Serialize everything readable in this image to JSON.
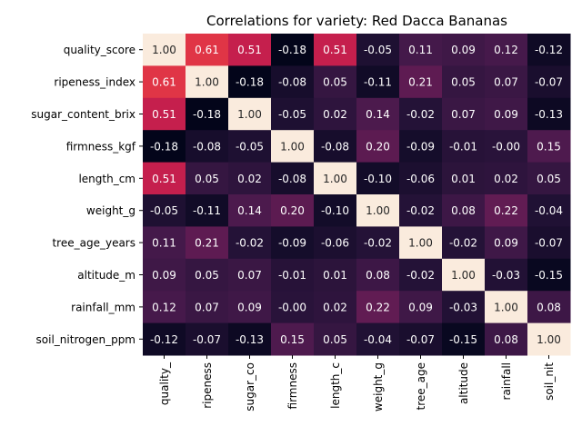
{
  "chart_data": {
    "type": "heatmap",
    "title": "Correlations for variety: Red Dacca Bananas",
    "row_labels": [
      "quality_score",
      "ripeness_index",
      "sugar_content_brix",
      "firmness_kgf",
      "length_cm",
      "weight_g",
      "tree_age_years",
      "altitude_m",
      "rainfall_mm",
      "soil_nitrogen_ppm"
    ],
    "col_labels": [
      "quality_",
      "ripeness",
      "sugar_co",
      "firmness",
      "length_c",
      "weight_g",
      "tree_age",
      "altitude",
      "rainfall",
      "soil_nit"
    ],
    "values": [
      [
        1.0,
        0.61,
        0.51,
        -0.18,
        0.51,
        -0.05,
        0.11,
        0.09,
        0.12,
        -0.12
      ],
      [
        0.61,
        1.0,
        -0.18,
        -0.08,
        0.05,
        -0.11,
        0.21,
        0.05,
        0.07,
        -0.07
      ],
      [
        0.51,
        -0.18,
        1.0,
        -0.05,
        0.02,
        0.14,
        -0.02,
        0.07,
        0.09,
        -0.13
      ],
      [
        -0.18,
        -0.08,
        -0.05,
        1.0,
        -0.08,
        0.2,
        -0.09,
        -0.01,
        -0.0,
        0.15
      ],
      [
        0.51,
        0.05,
        0.02,
        -0.08,
        1.0,
        -0.1,
        -0.06,
        0.01,
        0.02,
        0.05
      ],
      [
        -0.05,
        -0.11,
        0.14,
        0.2,
        -0.1,
        1.0,
        -0.02,
        0.08,
        0.22,
        -0.04
      ],
      [
        0.11,
        0.21,
        -0.02,
        -0.09,
        -0.06,
        -0.02,
        1.0,
        -0.02,
        0.09,
        -0.07
      ],
      [
        0.09,
        0.05,
        0.07,
        -0.01,
        0.01,
        0.08,
        -0.02,
        1.0,
        -0.03,
        -0.15
      ],
      [
        0.12,
        0.07,
        0.09,
        -0.0,
        0.02,
        0.22,
        0.09,
        -0.03,
        1.0,
        0.08
      ],
      [
        -0.12,
        -0.07,
        -0.13,
        0.15,
        0.05,
        -0.04,
        -0.07,
        -0.15,
        0.08,
        1.0
      ]
    ],
    "colormap": "rocket",
    "value_range": [
      -0.18,
      1.0
    ],
    "annotations": true,
    "colorbar": false,
    "grid": false
  }
}
